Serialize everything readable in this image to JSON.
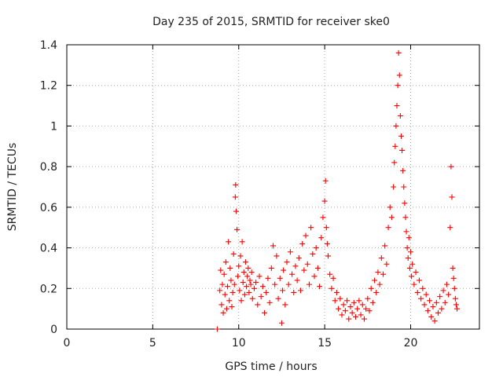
{
  "chart_data": {
    "type": "scatter",
    "title": "Day 235 of 2015, SRMTID for receiver ske0",
    "xlabel": "GPS time / hours",
    "ylabel": "SRMTID / TECUs",
    "xlim": [
      0,
      24
    ],
    "ylim": [
      0,
      1.4
    ],
    "xticks": [
      0,
      5,
      10,
      15,
      20
    ],
    "xtick_labels": [
      "0",
      "5",
      "10",
      "15",
      "20"
    ],
    "yticks": [
      0,
      0.2,
      0.4,
      0.6,
      0.8,
      1.0,
      1.2,
      1.4
    ],
    "ytick_labels": [
      "0",
      "0.2",
      "0.4",
      "0.6",
      "0.8",
      "1",
      "1.2",
      "1.4"
    ],
    "grid": true,
    "marker": "+",
    "color": "#ff0000",
    "series": [
      {
        "name": "SRMTID",
        "marker": "+",
        "points": [
          [
            8.75,
            0.0
          ],
          [
            8.9,
            0.19
          ],
          [
            8.95,
            0.29
          ],
          [
            9.0,
            0.12
          ],
          [
            9.05,
            0.22
          ],
          [
            9.1,
            0.08
          ],
          [
            9.15,
            0.27
          ],
          [
            9.2,
            0.17
          ],
          [
            9.25,
            0.33
          ],
          [
            9.3,
            0.1
          ],
          [
            9.35,
            0.21
          ],
          [
            9.4,
            0.43
          ],
          [
            9.45,
            0.14
          ],
          [
            9.5,
            0.3
          ],
          [
            9.55,
            0.24
          ],
          [
            9.6,
            0.11
          ],
          [
            9.65,
            0.18
          ],
          [
            9.7,
            0.37
          ],
          [
            9.75,
            0.22
          ],
          [
            9.8,
            0.65
          ],
          [
            9.82,
            0.71
          ],
          [
            9.85,
            0.58
          ],
          [
            9.9,
            0.49
          ],
          [
            9.95,
            0.26
          ],
          [
            10.0,
            0.31
          ],
          [
            10.05,
            0.19
          ],
          [
            10.1,
            0.36
          ],
          [
            10.15,
            0.14
          ],
          [
            10.2,
            0.43
          ],
          [
            10.25,
            0.23
          ],
          [
            10.3,
            0.28
          ],
          [
            10.35,
            0.17
          ],
          [
            10.4,
            0.33
          ],
          [
            10.45,
            0.21
          ],
          [
            10.5,
            0.26
          ],
          [
            10.55,
            0.3
          ],
          [
            10.6,
            0.18
          ],
          [
            10.65,
            0.24
          ],
          [
            10.7,
            0.22
          ],
          [
            10.75,
            0.28
          ],
          [
            10.8,
            0.15
          ],
          [
            10.9,
            0.2
          ],
          [
            11.0,
            0.23
          ],
          [
            11.1,
            0.12
          ],
          [
            11.2,
            0.26
          ],
          [
            11.3,
            0.16
          ],
          [
            11.4,
            0.21
          ],
          [
            11.5,
            0.08
          ],
          [
            11.6,
            0.18
          ],
          [
            11.7,
            0.25
          ],
          [
            11.8,
            0.13
          ],
          [
            11.9,
            0.3
          ],
          [
            12.0,
            0.41
          ],
          [
            12.1,
            0.22
          ],
          [
            12.2,
            0.36
          ],
          [
            12.3,
            0.15
          ],
          [
            12.4,
            0.25
          ],
          [
            12.5,
            0.03
          ],
          [
            12.55,
            0.19
          ],
          [
            12.6,
            0.29
          ],
          [
            12.7,
            0.12
          ],
          [
            12.8,
            0.33
          ],
          [
            12.9,
            0.22
          ],
          [
            13.0,
            0.38
          ],
          [
            13.1,
            0.27
          ],
          [
            13.2,
            0.18
          ],
          [
            13.3,
            0.31
          ],
          [
            13.4,
            0.24
          ],
          [
            13.5,
            0.35
          ],
          [
            13.6,
            0.19
          ],
          [
            13.7,
            0.42
          ],
          [
            13.8,
            0.29
          ],
          [
            13.9,
            0.46
          ],
          [
            14.0,
            0.32
          ],
          [
            14.1,
            0.22
          ],
          [
            14.2,
            0.5
          ],
          [
            14.3,
            0.37
          ],
          [
            14.4,
            0.26
          ],
          [
            14.5,
            0.4
          ],
          [
            14.6,
            0.3
          ],
          [
            14.7,
            0.21
          ],
          [
            14.8,
            0.45
          ],
          [
            14.9,
            0.55
          ],
          [
            15.0,
            0.63
          ],
          [
            15.05,
            0.73
          ],
          [
            15.1,
            0.5
          ],
          [
            15.15,
            0.42
          ],
          [
            15.2,
            0.36
          ],
          [
            15.3,
            0.27
          ],
          [
            15.4,
            0.2
          ],
          [
            15.5,
            0.25
          ],
          [
            15.6,
            0.14
          ],
          [
            15.7,
            0.18
          ],
          [
            15.8,
            0.1
          ],
          [
            15.9,
            0.15
          ],
          [
            16.0,
            0.07
          ],
          [
            16.1,
            0.12
          ],
          [
            16.2,
            0.09
          ],
          [
            16.3,
            0.14
          ],
          [
            16.4,
            0.05
          ],
          [
            16.5,
            0.11
          ],
          [
            16.6,
            0.08
          ],
          [
            16.7,
            0.13
          ],
          [
            16.8,
            0.06
          ],
          [
            16.9,
            0.1
          ],
          [
            17.0,
            0.14
          ],
          [
            17.1,
            0.07
          ],
          [
            17.2,
            0.12
          ],
          [
            17.3,
            0.05
          ],
          [
            17.4,
            0.1
          ],
          [
            17.5,
            0.15
          ],
          [
            17.6,
            0.09
          ],
          [
            17.7,
            0.2
          ],
          [
            17.8,
            0.13
          ],
          [
            17.9,
            0.24
          ],
          [
            18.0,
            0.18
          ],
          [
            18.1,
            0.28
          ],
          [
            18.2,
            0.22
          ],
          [
            18.3,
            0.35
          ],
          [
            18.4,
            0.27
          ],
          [
            18.5,
            0.41
          ],
          [
            18.6,
            0.32
          ],
          [
            18.7,
            0.5
          ],
          [
            18.8,
            0.6
          ],
          [
            18.9,
            0.55
          ],
          [
            19.0,
            0.7
          ],
          [
            19.05,
            0.82
          ],
          [
            19.1,
            0.9
          ],
          [
            19.15,
            1.0
          ],
          [
            19.2,
            1.1
          ],
          [
            19.25,
            1.2
          ],
          [
            19.3,
            1.36
          ],
          [
            19.35,
            1.25
          ],
          [
            19.4,
            1.05
          ],
          [
            19.45,
            0.95
          ],
          [
            19.5,
            0.88
          ],
          [
            19.55,
            0.78
          ],
          [
            19.6,
            0.7
          ],
          [
            19.65,
            0.62
          ],
          [
            19.7,
            0.55
          ],
          [
            19.75,
            0.48
          ],
          [
            19.8,
            0.4
          ],
          [
            19.85,
            0.35
          ],
          [
            19.9,
            0.45
          ],
          [
            19.95,
            0.3
          ],
          [
            20.0,
            0.38
          ],
          [
            20.05,
            0.26
          ],
          [
            20.1,
            0.32
          ],
          [
            20.2,
            0.22
          ],
          [
            20.3,
            0.28
          ],
          [
            20.4,
            0.18
          ],
          [
            20.5,
            0.24
          ],
          [
            20.6,
            0.15
          ],
          [
            20.7,
            0.2
          ],
          [
            20.8,
            0.12
          ],
          [
            20.9,
            0.17
          ],
          [
            21.0,
            0.09
          ],
          [
            21.1,
            0.14
          ],
          [
            21.2,
            0.06
          ],
          [
            21.3,
            0.11
          ],
          [
            21.4,
            0.04
          ],
          [
            21.5,
            0.13
          ],
          [
            21.6,
            0.08
          ],
          [
            21.7,
            0.16
          ],
          [
            21.8,
            0.1
          ],
          [
            21.9,
            0.19
          ],
          [
            22.0,
            0.13
          ],
          [
            22.1,
            0.22
          ],
          [
            22.2,
            0.17
          ],
          [
            22.3,
            0.5
          ],
          [
            22.35,
            0.8
          ],
          [
            22.4,
            0.65
          ],
          [
            22.45,
            0.3
          ],
          [
            22.5,
            0.25
          ],
          [
            22.55,
            0.2
          ],
          [
            22.6,
            0.15
          ],
          [
            22.65,
            0.12
          ],
          [
            22.7,
            0.1
          ]
        ]
      }
    ]
  }
}
